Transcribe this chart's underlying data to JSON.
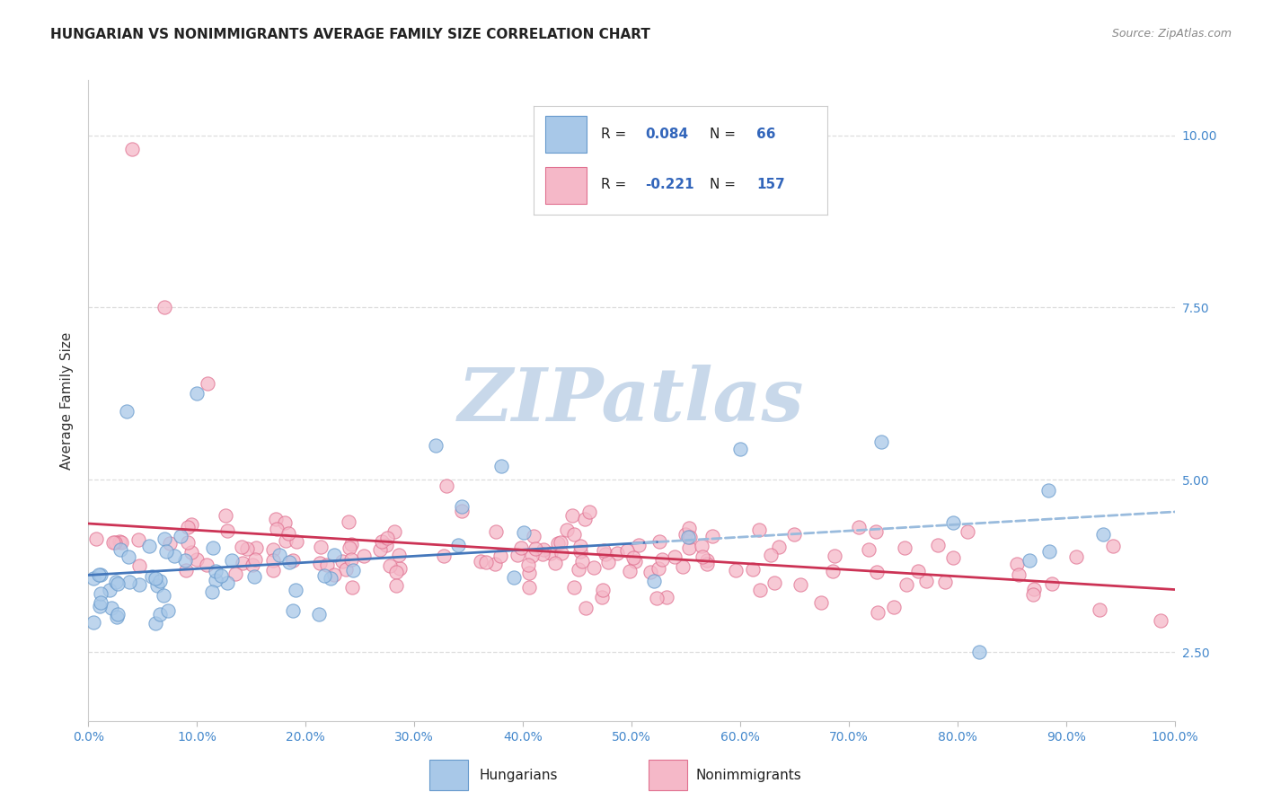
{
  "title": "HUNGARIAN VS NONIMMIGRANTS AVERAGE FAMILY SIZE CORRELATION CHART",
  "source": "Source: ZipAtlas.com",
  "ylabel": "Average Family Size",
  "xmin": 0.0,
  "xmax": 1.0,
  "ymin": 1.5,
  "ymax": 10.8,
  "hungarian_fill": "#A8C8E8",
  "hungarian_edge": "#6699CC",
  "nonimmigrant_fill": "#F5B8C8",
  "nonimmigrant_edge": "#E07090",
  "trend_hungarian_solid": "#4477BB",
  "trend_hungarian_dashed": "#99BBDD",
  "trend_nonimmigrant": "#CC3355",
  "watermark_color": "#C8D8EA",
  "legend_r_h": "0.084",
  "legend_n_h": "66",
  "legend_r_ni": "-0.221",
  "legend_n_ni": "157",
  "legend_r_color": "#3366BB",
  "legend_n_color": "#3366BB",
  "grid_color": "#DDDDDD",
  "title_color": "#222222",
  "axis_tick_color": "#4488CC",
  "right_ytick_values": [
    2.5,
    5.0,
    7.5,
    10.0
  ]
}
